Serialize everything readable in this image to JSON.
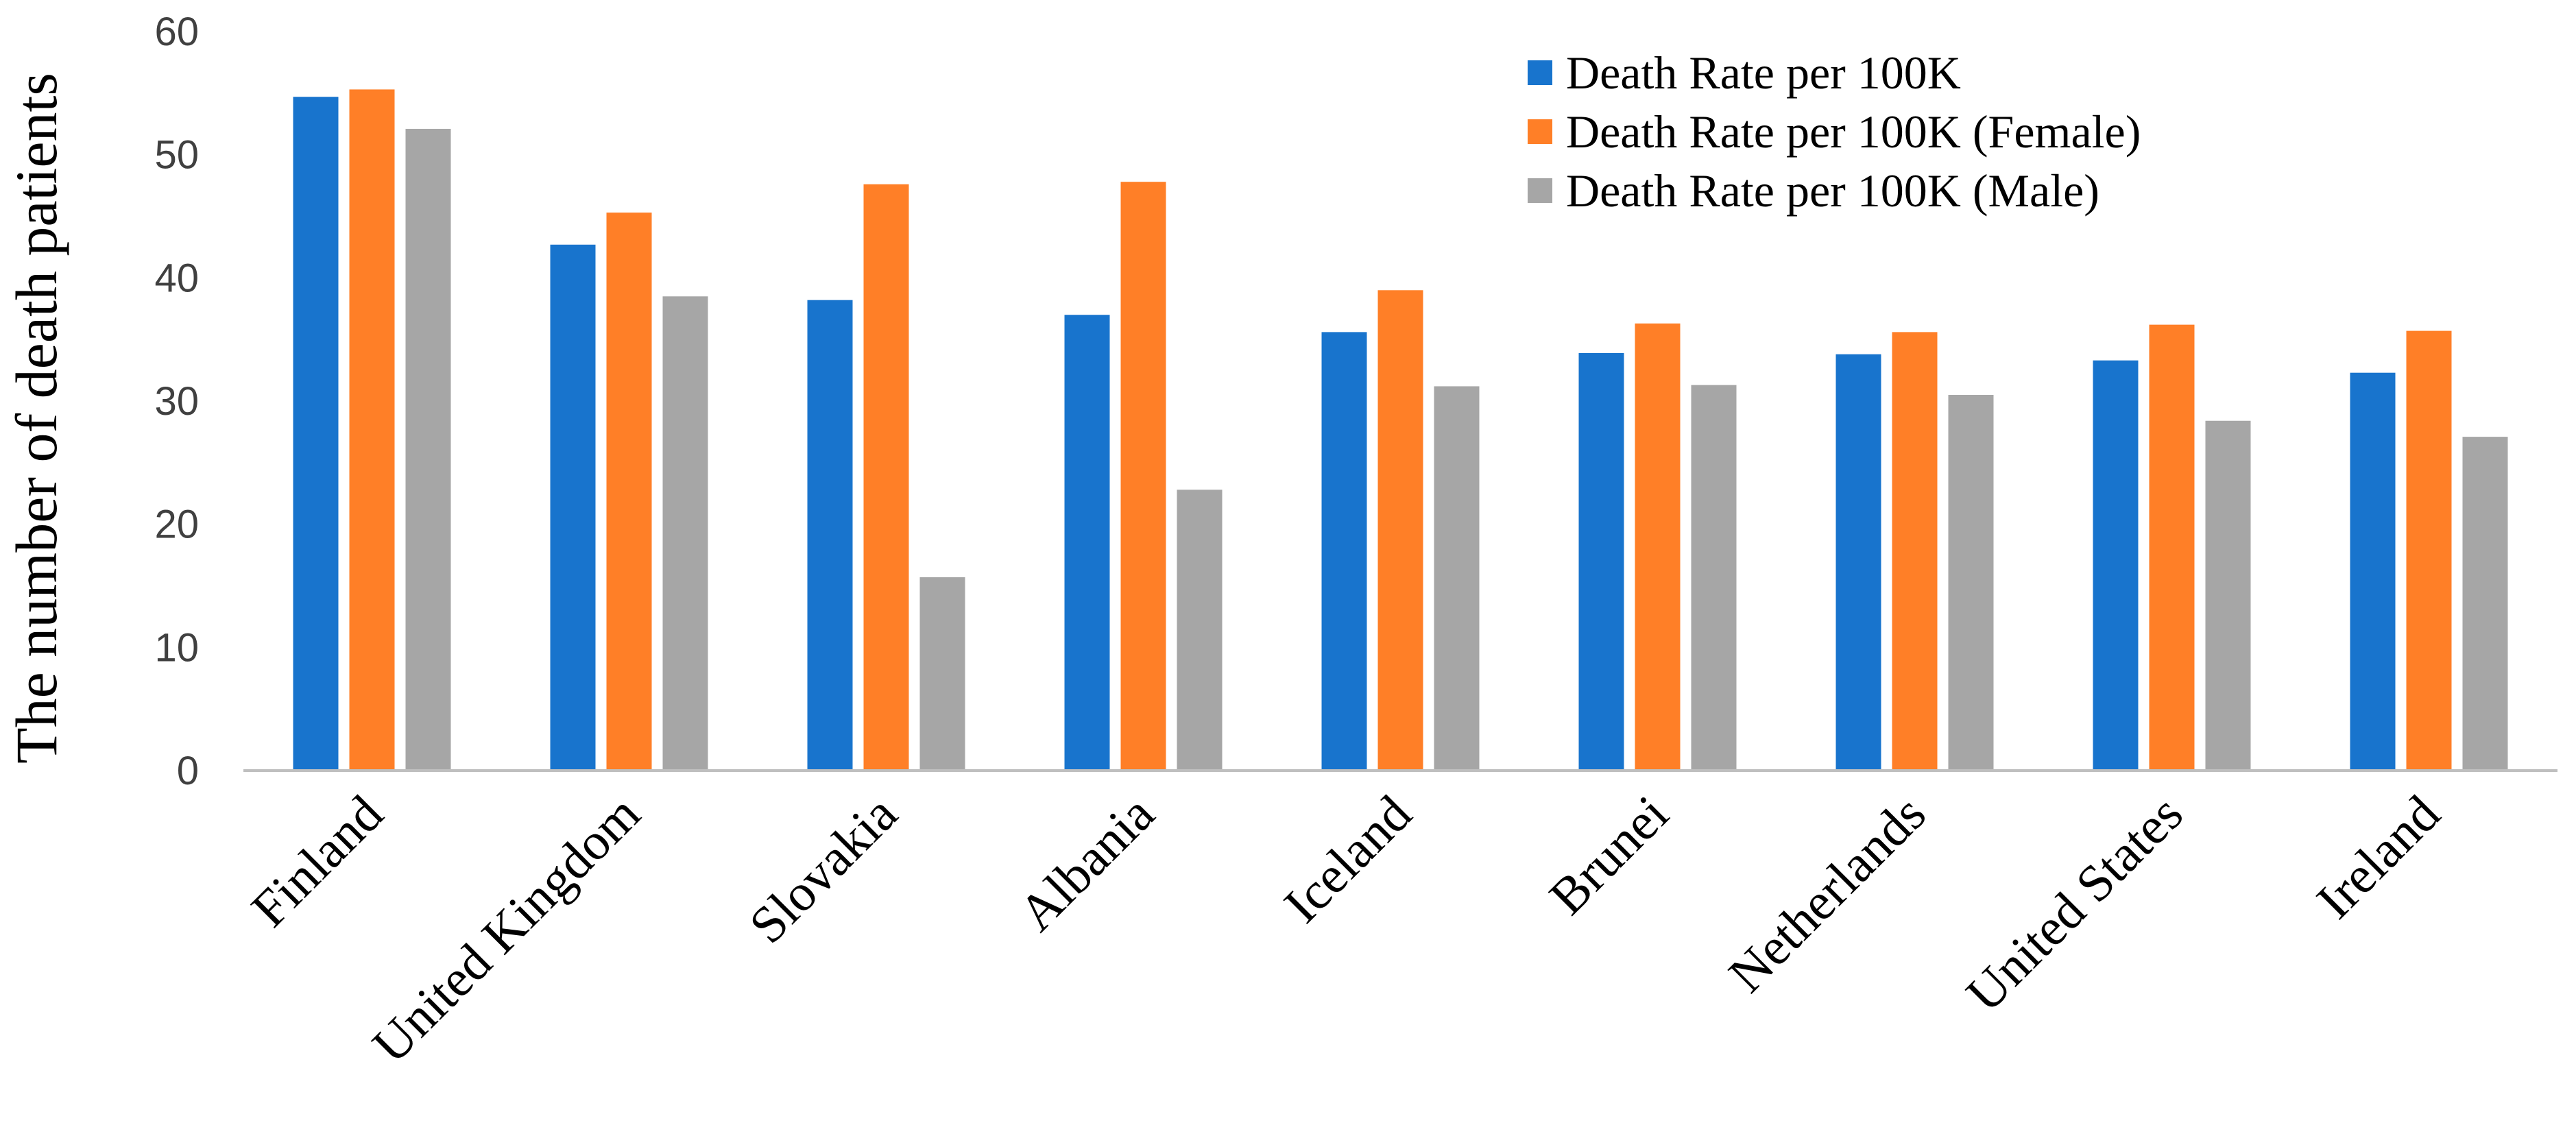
{
  "chart_data": {
    "type": "bar",
    "title": "",
    "xlabel": "",
    "ylabel": "The number of death patients",
    "ylim": [
      0,
      60
    ],
    "yticks": [
      0,
      10,
      20,
      30,
      40,
      50,
      60
    ],
    "grid": false,
    "legend_position": "top-right",
    "categories": [
      "Finland",
      "United Kingdom",
      "Slovakia",
      "Albania",
      "Iceland",
      "Brunei",
      "Netherlands",
      "United States",
      "Ireland"
    ],
    "series": [
      {
        "name": "Death Rate per 100K",
        "color": "#1874CD",
        "values": [
          54.7,
          42.7,
          38.2,
          37.0,
          35.6,
          33.9,
          33.8,
          33.3,
          32.3
        ]
      },
      {
        "name": "Death Rate per 100K (Female)",
        "color": "#FF7F27",
        "values": [
          55.3,
          45.3,
          47.6,
          47.8,
          39.0,
          36.3,
          35.6,
          36.2,
          35.7
        ]
      },
      {
        "name": "Death Rate per 100K (Male)",
        "color": "#A6A6A6",
        "values": [
          52.1,
          38.5,
          15.7,
          22.8,
          31.2,
          31.3,
          30.5,
          28.4,
          27.1
        ]
      }
    ]
  }
}
